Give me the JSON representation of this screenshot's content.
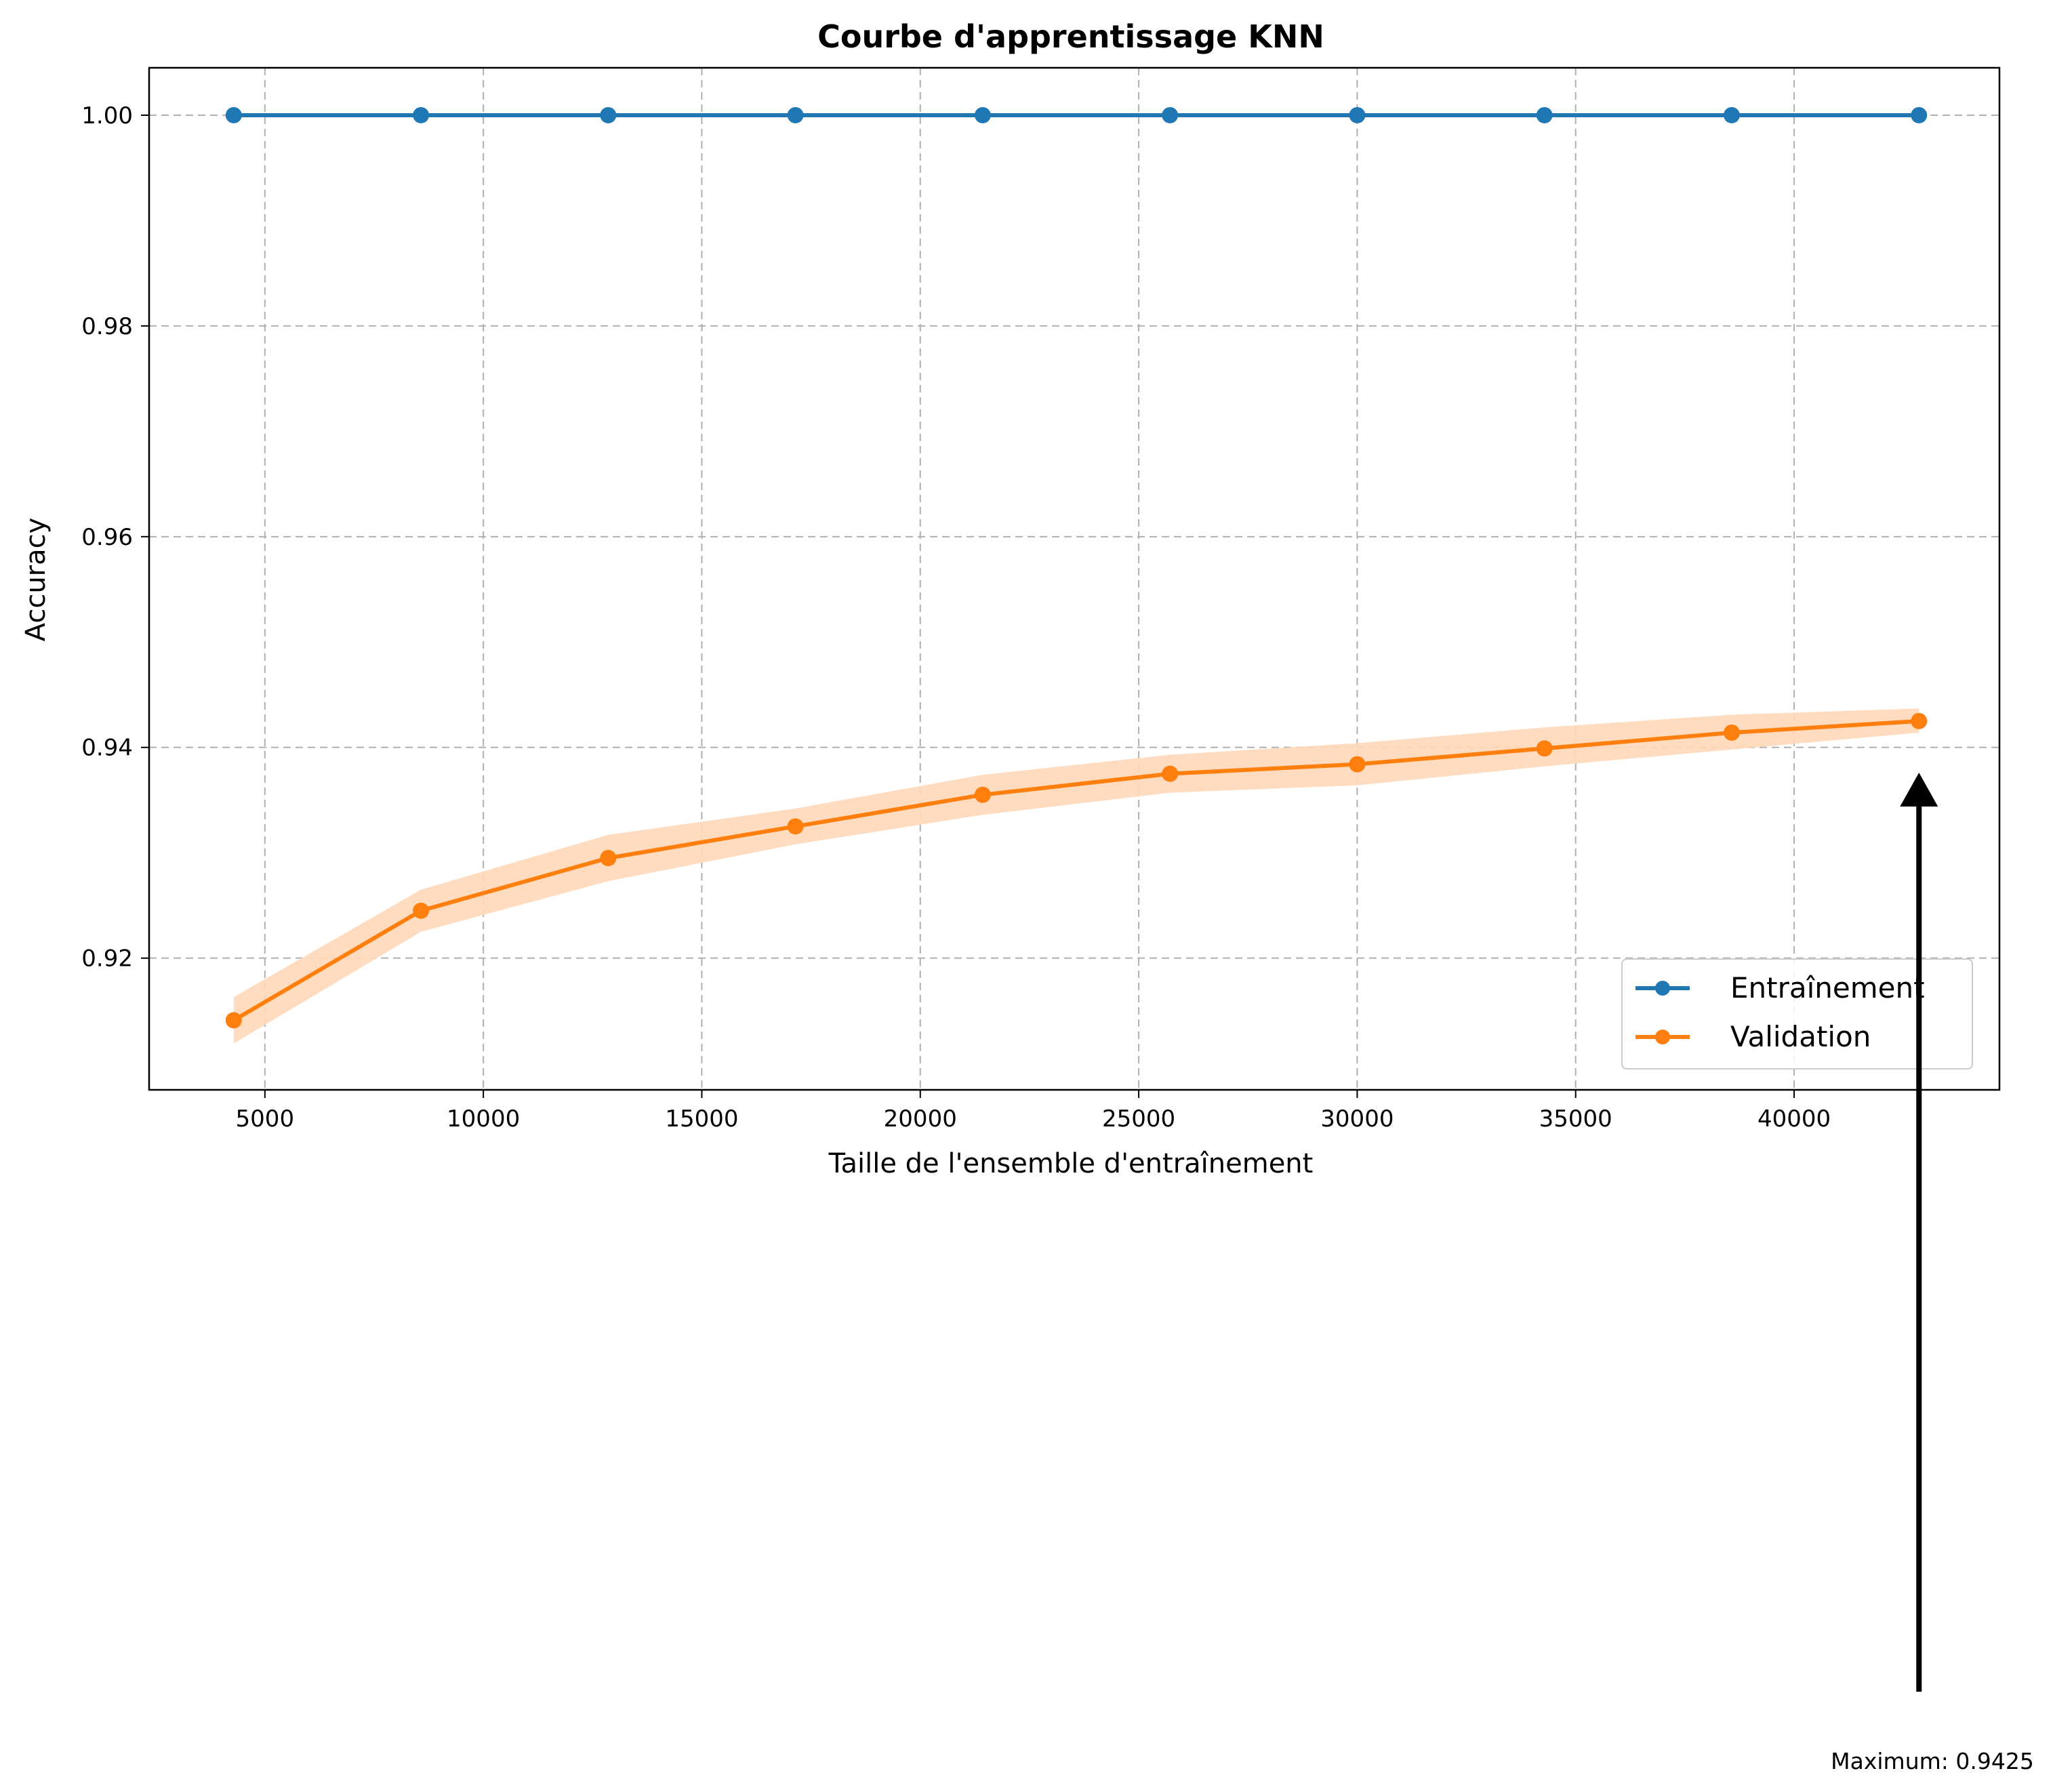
{
  "chart_data": {
    "type": "line",
    "title": "Courbe d'apprentissage KNN",
    "xlabel": "Taille de l'ensemble d'entraînement",
    "ylabel": "Accuracy",
    "xlim": [
      2350,
      44700
    ],
    "ylim": [
      0.9075,
      1.0045
    ],
    "xticks": [
      5000,
      10000,
      15000,
      20000,
      25000,
      30000,
      35000,
      40000
    ],
    "yticks": [
      0.92,
      0.94,
      0.96,
      0.98,
      1.0
    ],
    "ytick_labels": [
      "0.92",
      "0.94",
      "0.96",
      "0.98",
      "1.00"
    ],
    "grid": true,
    "legend_position": "lower-right",
    "x": [
      4286,
      8572,
      12857,
      17143,
      21429,
      25715,
      30001,
      34286,
      38572,
      42858
    ],
    "series": [
      {
        "name": "Entraînement",
        "color": "#1f77b4",
        "marker": "circle",
        "values": [
          1.0,
          1.0,
          1.0,
          1.0,
          1.0,
          1.0,
          1.0,
          1.0,
          1.0,
          1.0
        ]
      },
      {
        "name": "Validation",
        "color": "#ff7f0e",
        "marker": "circle",
        "values": [
          0.9141,
          0.9245,
          0.9295,
          0.9325,
          0.9355,
          0.9375,
          0.9384,
          0.9399,
          0.9414,
          0.9425
        ],
        "band_color": "#ffd8b8",
        "band_upper": [
          0.9163,
          0.9265,
          0.9317,
          0.9342,
          0.9374,
          0.9393,
          0.9404,
          0.9419,
          0.9431,
          0.9437
        ],
        "band_lower": [
          0.9119,
          0.9225,
          0.9273,
          0.9308,
          0.9336,
          0.9357,
          0.9364,
          0.9382,
          0.9398,
          0.9414
        ]
      }
    ],
    "annotation": {
      "text": "Maximum: 0.9425",
      "x": 42858,
      "y": 0.9425,
      "arrow_color": "#000000"
    }
  }
}
